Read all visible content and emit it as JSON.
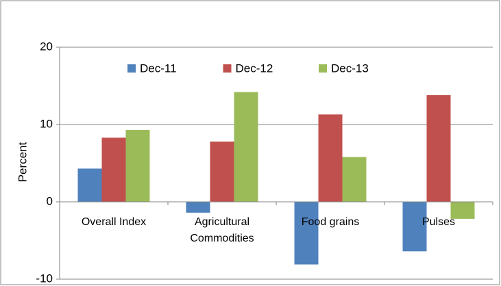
{
  "chart_data": {
    "type": "bar",
    "y_label": "Percent",
    "categories": [
      "Overall Index",
      "Agricultural Commodities",
      "Food grains",
      "Pulses"
    ],
    "series": [
      {
        "name": "Dec-11",
        "color": "#4f81bd",
        "values": [
          4.3,
          -1.4,
          -8.1,
          -6.4
        ]
      },
      {
        "name": "Dec-12",
        "color": "#c0504d",
        "values": [
          8.3,
          7.8,
          11.3,
          13.8
        ]
      },
      {
        "name": "Dec-13",
        "color": "#9bbb59",
        "values": [
          9.3,
          14.2,
          5.8,
          -2.2
        ]
      }
    ],
    "ylim": [
      -10,
      20
    ],
    "yticks": [
      -10,
      0,
      10,
      20
    ],
    "grid": true,
    "legend": "top"
  }
}
